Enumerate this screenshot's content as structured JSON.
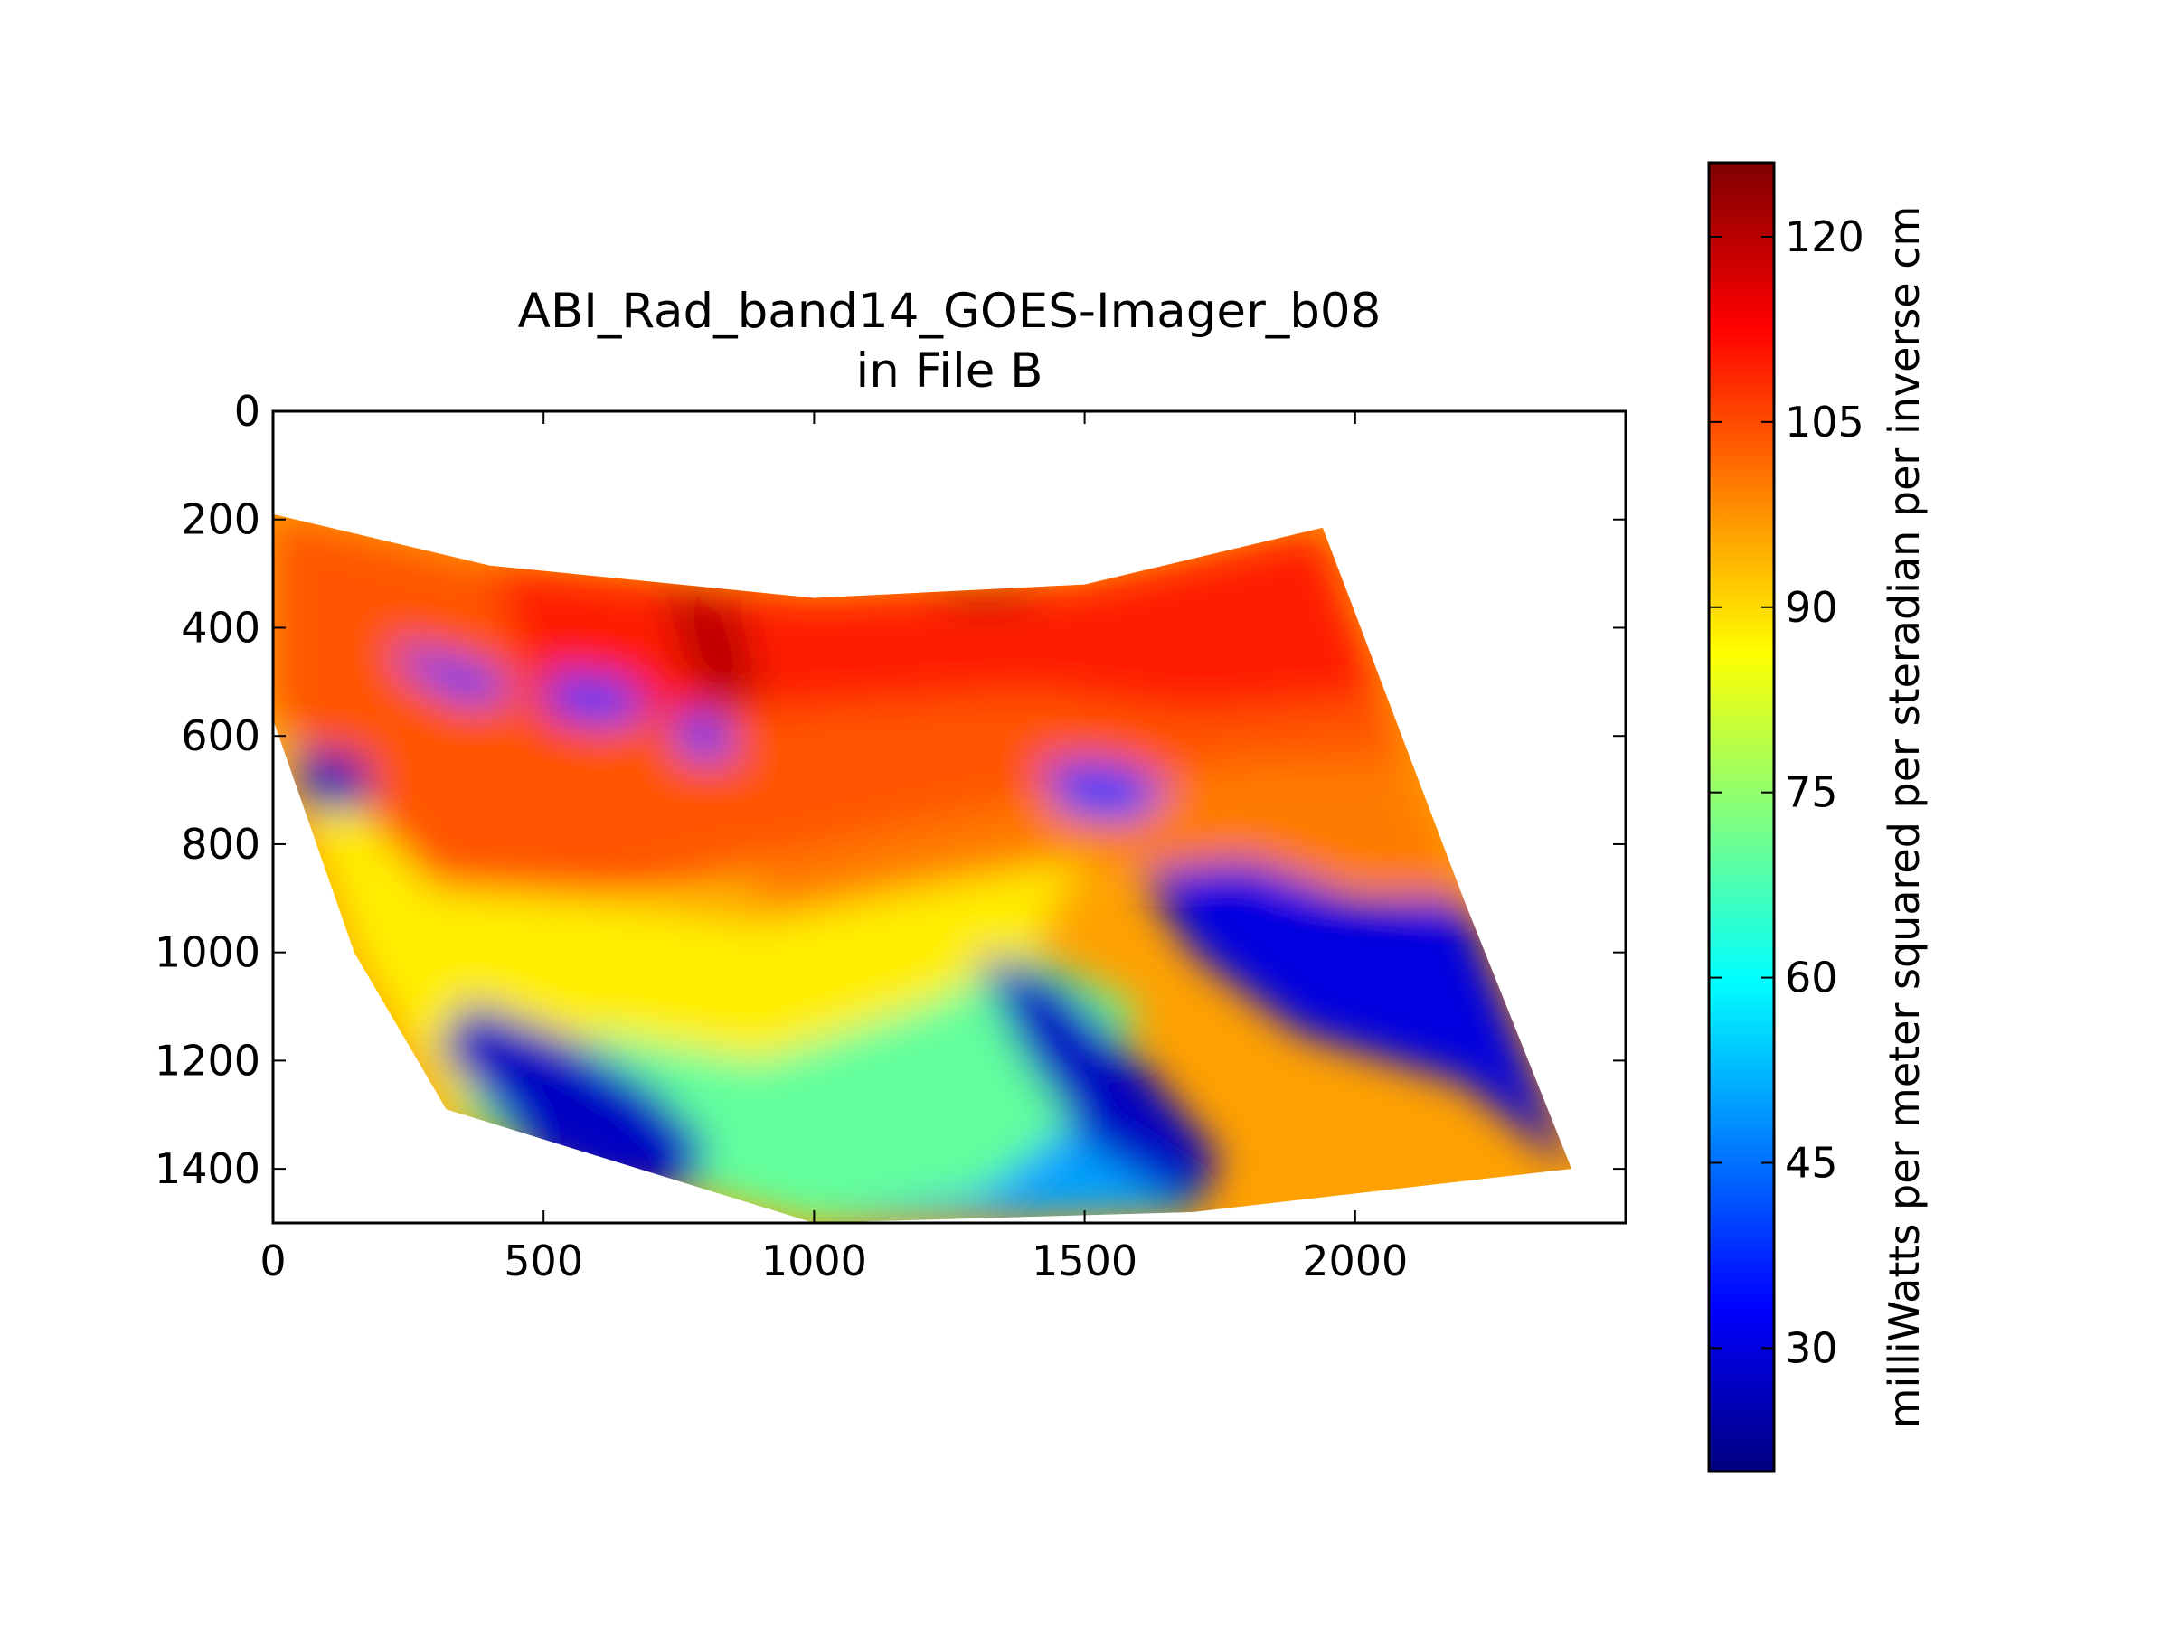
{
  "chart_data": {
    "type": "heatmap",
    "title_line1": "ABI_Rad_band14_GOES-Imager_b08",
    "title_line2": "in File B",
    "xlabel": "",
    "ylabel": "",
    "xlim": [
      0,
      2500
    ],
    "ylim": [
      1500,
      0
    ],
    "x_ticks": [
      0,
      500,
      1000,
      1500,
      2000
    ],
    "y_ticks": [
      0,
      200,
      400,
      600,
      800,
      1000,
      1200,
      1400
    ],
    "y_inverted": true,
    "grid": false,
    "colormap": "jet",
    "colorbar": {
      "label": "milliWatts per meter squared per steradian per inverse cm",
      "range": [
        20,
        126
      ],
      "ticks": [
        30,
        45,
        60,
        75,
        90,
        105,
        120
      ],
      "colors": [
        "#00007f",
        "#0000ff",
        "#007fff",
        "#00ffff",
        "#7fff7f",
        "#ffff00",
        "#ff7f00",
        "#ff0000",
        "#7f0000"
      ]
    },
    "swath_outline": {
      "top_edge": [
        [
          0,
          190
        ],
        [
          400,
          285
        ],
        [
          1000,
          345
        ],
        [
          1500,
          320
        ],
        [
          1940,
          215
        ]
      ],
      "right_edge": [
        [
          1940,
          215
        ],
        [
          2200,
          900
        ],
        [
          2400,
          1400
        ]
      ],
      "bottom_edge": [
        [
          2400,
          1400
        ],
        [
          1700,
          1480
        ],
        [
          1000,
          1500
        ],
        [
          320,
          1290
        ]
      ],
      "left_edge": [
        [
          320,
          1290
        ],
        [
          150,
          1000
        ],
        [
          0,
          570
        ]
      ]
    },
    "regions": [
      {
        "value": 104,
        "points": [
          [
            0,
            190
          ],
          [
            400,
            285
          ],
          [
            1000,
            345
          ],
          [
            1500,
            320
          ],
          [
            1940,
            215
          ],
          [
            2100,
            640
          ],
          [
            1800,
            650
          ],
          [
            1500,
            700
          ],
          [
            1200,
            760
          ],
          [
            900,
            830
          ],
          [
            600,
            900
          ],
          [
            300,
            880
          ],
          [
            0,
            570
          ]
        ]
      },
      {
        "value": 110,
        "points": [
          [
            400,
            285
          ],
          [
            1000,
            345
          ],
          [
            1500,
            320
          ],
          [
            1940,
            215
          ],
          [
            2050,
            530
          ],
          [
            1700,
            560
          ],
          [
            1400,
            520
          ],
          [
            1100,
            540
          ],
          [
            800,
            560
          ],
          [
            500,
            600
          ]
        ]
      },
      {
        "value": 100,
        "points": [
          [
            900,
            830
          ],
          [
            1200,
            760
          ],
          [
            1500,
            700
          ],
          [
            1800,
            650
          ],
          [
            2100,
            640
          ],
          [
            2200,
            900
          ],
          [
            1800,
            860
          ],
          [
            1500,
            820
          ],
          [
            1200,
            880
          ],
          [
            900,
            940
          ]
        ]
      },
      {
        "value": 88,
        "points": [
          [
            0,
            570
          ],
          [
            300,
            880
          ],
          [
            600,
            900
          ],
          [
            900,
            940
          ],
          [
            1200,
            880
          ],
          [
            1500,
            830
          ],
          [
            1400,
            1000
          ],
          [
            1200,
            1100
          ],
          [
            900,
            1200
          ],
          [
            600,
            1150
          ],
          [
            320,
            1290
          ],
          [
            150,
            1000
          ]
        ]
      },
      {
        "value": 70,
        "points": [
          [
            600,
            1150
          ],
          [
            900,
            1200
          ],
          [
            1200,
            1100
          ],
          [
            1400,
            1000
          ],
          [
            1600,
            1100
          ],
          [
            1500,
            1300
          ],
          [
            1300,
            1450
          ],
          [
            1000,
            1500
          ],
          [
            700,
            1420
          ],
          [
            500,
            1380
          ],
          [
            320,
            1290
          ]
        ]
      },
      {
        "value": 50,
        "points": [
          [
            1000,
            1500
          ],
          [
            1300,
            1450
          ],
          [
            1500,
            1300
          ],
          [
            1700,
            1350
          ],
          [
            1700,
            1480
          ]
        ]
      },
      {
        "value": 30,
        "points": [
          [
            1600,
            850
          ],
          [
            1800,
            830
          ],
          [
            2000,
            900
          ],
          [
            2200,
            900
          ],
          [
            2400,
            1400
          ],
          [
            2200,
            1240
          ],
          [
            1900,
            1150
          ],
          [
            1700,
            1000
          ]
        ]
      },
      {
        "value": 27,
        "points": [
          [
            1300,
            1000
          ],
          [
            1450,
            1050
          ],
          [
            1600,
            1200
          ],
          [
            1750,
            1380
          ],
          [
            1700,
            1480
          ],
          [
            1500,
            1350
          ],
          [
            1380,
            1180
          ]
        ]
      },
      {
        "value": 27,
        "points": [
          [
            360,
            1090
          ],
          [
            550,
            1160
          ],
          [
            700,
            1250
          ],
          [
            800,
            1350
          ],
          [
            780,
            1440
          ],
          [
            620,
            1440
          ],
          [
            480,
            1380
          ],
          [
            380,
            1260
          ],
          [
            300,
            1180
          ]
        ]
      },
      {
        "value": 26,
        "points": [
          [
            30,
            620
          ],
          [
            170,
            640
          ],
          [
            180,
            730
          ],
          [
            60,
            740
          ]
        ]
      },
      {
        "value": 40,
        "points": [
          [
            220,
            430
          ],
          [
            380,
            470
          ],
          [
            460,
            520
          ],
          [
            360,
            540
          ],
          [
            250,
            480
          ]
        ]
      },
      {
        "value": 40,
        "points": [
          [
            520,
            480
          ],
          [
            650,
            500
          ],
          [
            700,
            560
          ],
          [
            600,
            580
          ],
          [
            500,
            550
          ]
        ]
      },
      {
        "value": 40,
        "points": [
          [
            740,
            560
          ],
          [
            820,
            560
          ],
          [
            860,
            640
          ],
          [
            760,
            640
          ]
        ]
      },
      {
        "value": 40,
        "points": [
          [
            1420,
            650
          ],
          [
            1560,
            650
          ],
          [
            1660,
            700
          ],
          [
            1580,
            760
          ],
          [
            1460,
            740
          ]
        ]
      },
      {
        "value": 120,
        "points": [
          [
            720,
            320
          ],
          [
            860,
            360
          ],
          [
            900,
            520
          ],
          [
            820,
            560
          ],
          [
            760,
            460
          ]
        ]
      },
      {
        "value": 122,
        "points": [
          [
            1220,
            330
          ],
          [
            1380,
            330
          ],
          [
            1420,
            360
          ],
          [
            1250,
            360
          ]
        ]
      }
    ]
  }
}
